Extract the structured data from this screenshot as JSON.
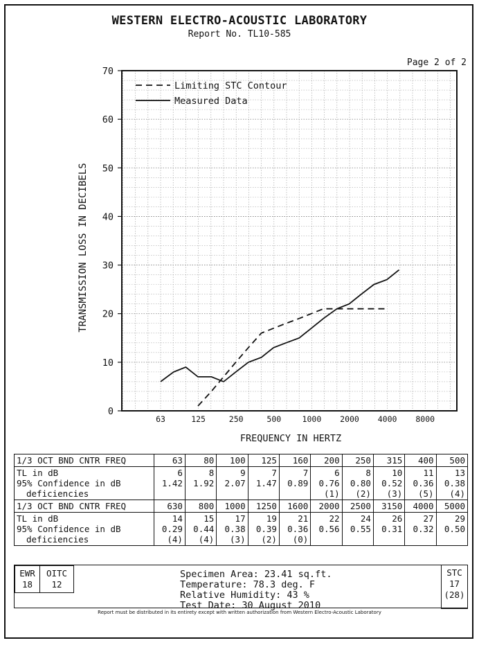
{
  "header": {
    "title": "WESTERN ELECTRO-ACOUSTIC LABORATORY",
    "report": "Report No. TL10-585",
    "page": "Page 2 of 2"
  },
  "chart_data": {
    "type": "line",
    "ylabel": "TRANSMISSION LOSS IN DECIBELS",
    "xlabel": "FREQUENCY IN HERTZ",
    "ylim": [
      0,
      70
    ],
    "yticks": [
      0,
      10,
      20,
      30,
      40,
      50,
      60,
      70
    ],
    "xtick_labels": [
      "63",
      "125",
      "250",
      "500",
      "1000",
      "2000",
      "4000",
      "8000"
    ],
    "x": [
      63,
      80,
      100,
      125,
      160,
      200,
      250,
      315,
      400,
      500,
      630,
      800,
      1000,
      1250,
      1600,
      2000,
      2500,
      3150,
      4000,
      5000
    ],
    "series": [
      {
        "name": "Limiting STC Contour",
        "style": "dashed",
        "x": [
          125,
          160,
          200,
          250,
          315,
          400,
          500,
          630,
          800,
          1000,
          1250,
          1600,
          2000,
          2500,
          3150,
          4000
        ],
        "values": [
          1,
          4,
          7,
          10,
          13,
          16,
          17,
          18,
          19,
          20,
          21,
          21,
          21,
          21,
          21,
          21
        ]
      },
      {
        "name": "Measured Data",
        "style": "solid",
        "x": [
          63,
          80,
          100,
          125,
          160,
          200,
          250,
          315,
          400,
          500,
          630,
          800,
          1000,
          1250,
          1600,
          2000,
          2500,
          3150,
          4000,
          5000
        ],
        "values": [
          6,
          8,
          9,
          7,
          7,
          6,
          8,
          10,
          11,
          13,
          14,
          15,
          17,
          19,
          21,
          22,
          24,
          26,
          27,
          29
        ]
      }
    ],
    "legend_position": "top-left",
    "grid": true
  },
  "table": {
    "rows1": [
      {
        "label": "1/3 OCT BND CNTR FREQ",
        "values": [
          "63",
          "80",
          "100",
          "125",
          "160",
          "200",
          "250",
          "315",
          "400",
          "500"
        ]
      },
      {
        "label": "TL in dB",
        "values": [
          "6",
          "8",
          "9",
          "7",
          "7",
          "6",
          "8",
          "10",
          "11",
          "13"
        ]
      },
      {
        "label": "95% Confidence in dB",
        "values": [
          "1.42",
          "1.92",
          "2.07",
          "1.47",
          "0.89",
          "0.76",
          "0.80",
          "0.52",
          "0.36",
          "0.38"
        ]
      },
      {
        "label": "deficiencies",
        "values": [
          "",
          "",
          "",
          "",
          "",
          "(1)",
          "(2)",
          "(3)",
          "(5)",
          "(4)"
        ]
      }
    ],
    "rows2": [
      {
        "label": "1/3 OCT BND CNTR FREQ",
        "values": [
          "630",
          "800",
          "1000",
          "1250",
          "1600",
          "2000",
          "2500",
          "3150",
          "4000",
          "5000"
        ]
      },
      {
        "label": "TL in dB",
        "values": [
          "14",
          "15",
          "17",
          "19",
          "21",
          "22",
          "24",
          "26",
          "27",
          "29"
        ]
      },
      {
        "label": "95% Confidence in dB",
        "values": [
          "0.29",
          "0.44",
          "0.38",
          "0.39",
          "0.36",
          "0.56",
          "0.55",
          "0.31",
          "0.32",
          "0.50"
        ]
      },
      {
        "label": "deficiencies",
        "values": [
          "(4)",
          "(4)",
          "(3)",
          "(2)",
          "(0)",
          "",
          "",
          "",
          "",
          ""
        ]
      }
    ]
  },
  "summary": {
    "ewr_label": "EWR",
    "ewr_value": "18",
    "oitc_label": "OITC",
    "oitc_value": "12",
    "stc_label": "STC",
    "stc_value": "17",
    "stc_sub": "(28)",
    "specimen": "Specimen Area: 23.41 sq.ft.",
    "temperature": "Temperature: 78.3 deg. F",
    "humidity": "Relative Humidity: 43 %",
    "test_date": "Test Date: 30 August 2010"
  },
  "footer": "Report must be distributed in its entirety except with written authorization from Western Electro-Acoustic Laboratory"
}
